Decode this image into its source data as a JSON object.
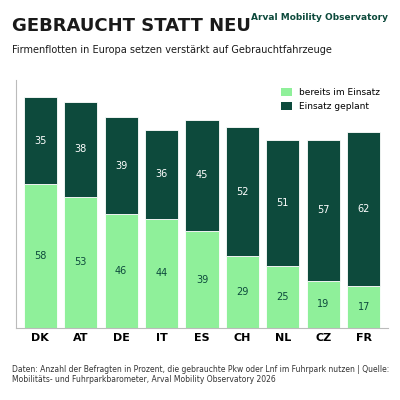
{
  "chart_data": {
    "type": "bar",
    "title": "GEBRAUCHT STATT NEU",
    "subtitle": "Firmenflotten in Europa setzen verstärkt auf Gebrauchtfahrzeuge",
    "logo": "Arval Mobility Observatory",
    "footnote": "Daten: Anzahl der Befragten in Prozent, die gebrauchte Pkw oder Lnf im Fuhrpark nutzen | Quelle: Mobilitäts- und Fuhrparkbarometer, Arval Mobility Observatory 2026",
    "categories": [
      "DK",
      "AT",
      "DE",
      "IT",
      "ES",
      "CH",
      "NL",
      "CZ",
      "FR"
    ],
    "series": [
      {
        "name": "bereits im Einsatz",
        "color": "#8ff09a",
        "values": [
          58,
          53,
          46,
          44,
          39,
          29,
          25,
          19,
          17
        ]
      },
      {
        "name": "Einsatz geplant",
        "color": "#0d4a3c",
        "values": [
          35,
          38,
          39,
          36,
          45,
          52,
          51,
          57,
          62
        ]
      }
    ],
    "stacked": true,
    "data_labels": true,
    "legend": "upper right",
    "tick_labels": "x",
    "ylim": [
      0,
      100
    ],
    "yticks": [],
    "grid": false
  }
}
